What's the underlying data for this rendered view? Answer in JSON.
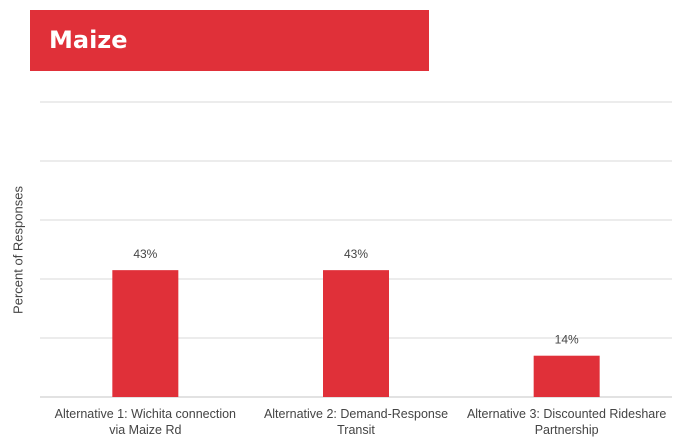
{
  "chart_data": {
    "type": "bar",
    "title": "Maize",
    "ylabel": "Percent of Responses",
    "xlabel": "",
    "categories": [
      "Alternative 1: Wichita connection via Maize Rd",
      "Alternative 2: Demand-Response Transit",
      "Alternative 3: Discounted Rideshare Partnership"
    ],
    "values": [
      43,
      43,
      14
    ],
    "data_labels": [
      "43%",
      "43%",
      "14%"
    ],
    "ylim": [
      0,
      100
    ],
    "grid": true,
    "legend": "none",
    "colors": {
      "bar": "#e03039",
      "title_banner": "#e03039",
      "gridline": "#d9d9d9"
    }
  }
}
